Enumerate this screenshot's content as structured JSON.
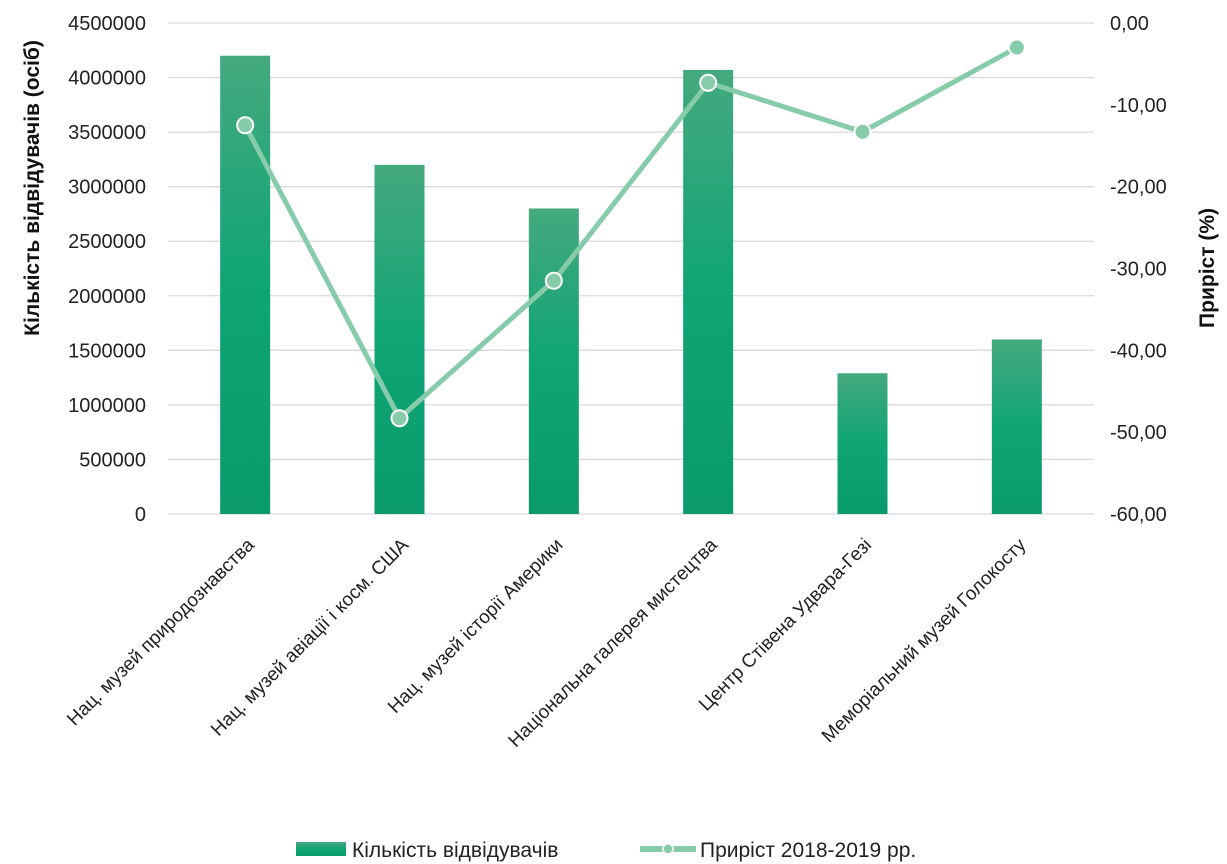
{
  "chart_data": {
    "type": "bar+line",
    "categories": [
      "Нац. музей природознавства",
      "Нац. музей авіації і косм. США",
      "Нац. музей історії Америки",
      "Національна галерея мистецтва",
      "Центр Стівена Удвара-Гезі",
      "Меморіальний музей Голокосту"
    ],
    "series": [
      {
        "name": "Кількість відвідувачів",
        "type": "bar",
        "axis": "left",
        "values": [
          4200000,
          3200000,
          2800000,
          4070000,
          1290000,
          1600000
        ]
      },
      {
        "name": "Приріст 2018-2019 рр.",
        "type": "line",
        "axis": "right",
        "values": [
          -12.5,
          -48.3,
          -31.5,
          -7.3,
          -13.3,
          -3.0
        ]
      }
    ],
    "ylabel": "Кількість відвідувачів (осіб)",
    "y2label": "Приріст (%)",
    "ylim": [
      0,
      4500000
    ],
    "y2lim": [
      -60,
      0
    ],
    "yticks": [
      "0",
      "500000",
      "1000000",
      "1500000",
      "2000000",
      "2500000",
      "3000000",
      "3500000",
      "4000000",
      "4500000"
    ],
    "y2ticks": [
      "-60,00",
      "-50,00",
      "-40,00",
      "-30,00",
      "-20,00",
      "-10,00",
      "0,00"
    ],
    "grid": true,
    "legend": "bottom",
    "colors": {
      "bar_top": "#45a97f",
      "bar_mid": "#0fa574",
      "bar_bottom": "#0a9a6c",
      "line": "#86cbaa",
      "grid": "#d9d9d9"
    }
  }
}
